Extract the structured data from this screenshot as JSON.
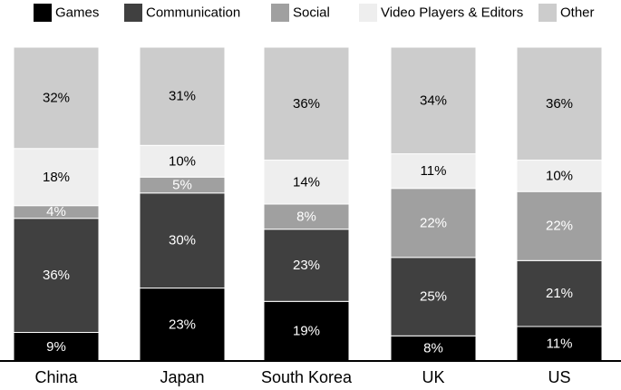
{
  "chart_data": {
    "type": "bar",
    "stacked": true,
    "orientation": "vertical",
    "categories": [
      "China",
      "Japan",
      "South Korea",
      "UK",
      "US"
    ],
    "series": [
      {
        "name": "Games",
        "color": "#000000",
        "label_color": "#ffffff",
        "values": [
          9,
          23,
          19,
          8,
          11
        ],
        "labels": [
          "9%",
          "23%",
          "19%",
          "8%",
          "11%"
        ]
      },
      {
        "name": "Communication",
        "color": "#404040",
        "label_color": "#ffffff",
        "values": [
          36,
          30,
          23,
          25,
          21
        ],
        "labels": [
          "36%",
          "30%",
          "23%",
          "25%",
          "21%"
        ]
      },
      {
        "name": "Social",
        "color": "#a0a0a0",
        "label_color": "#ffffff",
        "values": [
          4,
          5,
          8,
          22,
          22
        ],
        "labels": [
          "4%",
          "5%",
          "8%",
          "22%",
          "22%"
        ]
      },
      {
        "name": "Video Players & Editors",
        "color": "#eeeeee",
        "label_color": "#000000",
        "values": [
          18,
          10,
          14,
          11,
          10
        ],
        "labels": [
          "18%",
          "10%",
          "14%",
          "11%",
          "10%"
        ]
      },
      {
        "name": "Other",
        "color": "#cccccc",
        "label_color": "#000000",
        "values": [
          32,
          31,
          36,
          34,
          36
        ],
        "labels": [
          "32%",
          "31%",
          "36%",
          "34%",
          "36%"
        ]
      }
    ],
    "ylim": [
      0,
      100
    ],
    "unit": "%",
    "grid": false,
    "legend_position": "top",
    "title": "",
    "xlabel": "",
    "ylabel": ""
  }
}
